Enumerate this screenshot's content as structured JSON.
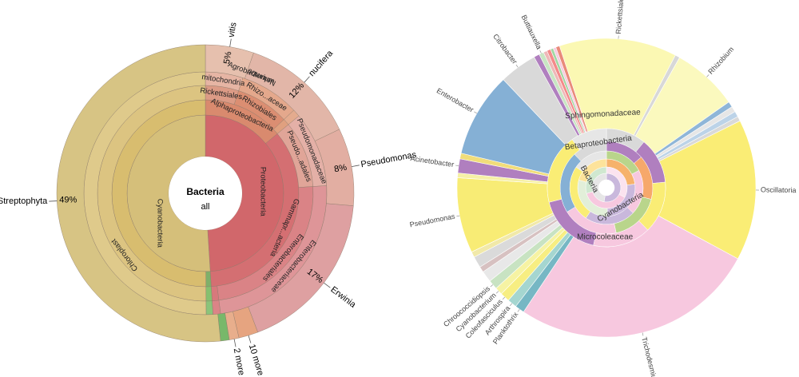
{
  "chart_data": [
    {
      "type": "sunburst",
      "center": {
        "title": "Bacteria",
        "subtitle": "all"
      },
      "rings": [
        [
          {
            "label": "Proteobacteria",
            "value": 49,
            "color": "#d1676b"
          },
          {
            "label": "Cyanobacteria",
            "value": 51,
            "color": "#d5bf7a"
          }
        ],
        [
          {
            "label": "Alphaproteobacteria",
            "value": 14,
            "color": "#d98a6e"
          },
          {
            "label": "Gammapr...acteria",
            "value": 35,
            "color": "#d46f72"
          },
          {
            "label": "",
            "value": 0.9,
            "color": "#7fb06a"
          },
          {
            "label": "Cyanobacteria",
            "value": 50.1,
            "color": "#d8bd6f"
          }
        ],
        [
          {
            "label": "Rickettsiales",
            "value": 5,
            "color": "#dc9b86"
          },
          {
            "label": "Rhizobiales",
            "value": 8,
            "color": "#db8e72"
          },
          {
            "label": "",
            "value": 1,
            "color": "#e0a07f"
          },
          {
            "label": "Pseudo...adales",
            "value": 10,
            "color": "#e0a598"
          },
          {
            "label": "Enterobacteriales",
            "value": 24,
            "color": "#da8386"
          },
          {
            "label": "",
            "value": 1,
            "color": "#d8797c"
          },
          {
            "label": "",
            "value": 0.9,
            "color": "#86c06f"
          },
          {
            "label": "Chloroplast",
            "value": 50.1,
            "color": "#dcc481"
          }
        ],
        [
          {
            "label": "mitochondria",
            "value": 5,
            "color": "#e6b5a4"
          },
          {
            "label": "Rhizo...aceae",
            "value": 8,
            "color": "#e4a88c"
          },
          {
            "label": "",
            "value": 1,
            "color": "#e4ab8e"
          },
          {
            "label": "Pseudomonadaceae",
            "value": 10,
            "color": "#e4b0a7"
          },
          {
            "label": "Enterobacteriaceae",
            "value": 24,
            "color": "#de9598"
          },
          {
            "label": "",
            "value": 1,
            "color": "#db8487"
          },
          {
            "label": "",
            "value": 0.9,
            "color": "#8bc47a"
          },
          {
            "label": "",
            "value": 50.1,
            "color": "#dfca8b"
          }
        ],
        [
          {
            "label": "vitis",
            "value": 5,
            "color": "#e6c0ae"
          },
          {
            "label": "nucifera",
            "value": 12,
            "color": "#e2b6a8"
          },
          {
            "label": "Pseudomonas",
            "value": 8,
            "color": "#e2aea2"
          },
          {
            "label": "Erwinia",
            "value": 17,
            "color": "#dea0a1"
          },
          {
            "label": "10 more",
            "value": 2,
            "color": "#e6a480"
          },
          {
            "label": "2 more",
            "value": 1,
            "color": "#e8ae8c"
          },
          {
            "label": "",
            "value": 0.9,
            "color": "#78b86a"
          },
          {
            "label": "Streptophyta",
            "value": 49,
            "color": "#d7c484"
          }
        ]
      ],
      "inner_labels": [
        "Nelumbo",
        "Agrobacterium"
      ],
      "percent_labels": [
        {
          "label": "49%",
          "for": "Streptophyta"
        },
        {
          "label": "5%",
          "for": "vitis"
        },
        {
          "label": "12%",
          "for": "nucifera"
        },
        {
          "label": "8%",
          "for": "Pseudomonas"
        },
        {
          "label": "17%",
          "for": "Erwinia"
        }
      ],
      "outer_labels": [
        "Streptophyta",
        "vitis",
        "nucifera",
        "Pseudomonas",
        "Erwinia",
        "10 more",
        "2 more"
      ]
    },
    {
      "type": "sunburst",
      "center": {
        "title": "",
        "subtitle": ""
      },
      "outer_ring": [
        {
          "label": "Rickettsiales",
          "value": 12.5,
          "color": "#fbf8b3"
        },
        {
          "label": "",
          "value": 0.5,
          "color": "#d8d8d8"
        },
        {
          "label": "Rhizobium",
          "value": 7,
          "color": "#fbf9be"
        },
        {
          "label": "",
          "value": 0.6,
          "color": "#8fb6d8"
        },
        {
          "label": "",
          "value": 0.6,
          "color": "#e6e6e6"
        },
        {
          "label": "",
          "value": 0.6,
          "color": "#bcd3e8"
        },
        {
          "label": "",
          "value": 0.5,
          "color": "#d9d9d9"
        },
        {
          "label": "Oscillatoria",
          "value": 15,
          "color": "#faed75"
        },
        {
          "label": "Trichodesmium",
          "value": 26,
          "color": "#f7c8df"
        },
        {
          "label": "Planktothrix",
          "value": 1,
          "color": "#76b7c4"
        },
        {
          "label": "Arthrospira",
          "value": 1,
          "color": "#a5d6d0"
        },
        {
          "label": "Coleofasciculus",
          "value": 1,
          "color": "#f7ee82"
        },
        {
          "label": "Cyanobacterium",
          "value": 0.8,
          "color": "#f6f3a3"
        },
        {
          "label": "Chroococcidiopsis",
          "value": 1,
          "color": "#c8e3c2"
        },
        {
          "label": "",
          "value": 1.2,
          "color": "#e8e8e8"
        },
        {
          "label": "",
          "value": 0.6,
          "color": "#d7c1c1"
        },
        {
          "label": "",
          "value": 1.2,
          "color": "#dadada"
        },
        {
          "label": "",
          "value": 0.6,
          "color": "#f1e9a9"
        },
        {
          "label": "Pseudomonas",
          "value": 8,
          "color": "#f8ec75"
        },
        {
          "label": "",
          "value": 0.5,
          "color": "#f6f0a6"
        },
        {
          "label": "Acinetobacter",
          "value": 1.5,
          "color": "#b07fbf"
        },
        {
          "label": "",
          "value": 0.6,
          "color": "#f1dd7a"
        },
        {
          "label": "Enterobacter",
          "value": 9,
          "color": "#85b0d5"
        },
        {
          "label": "Citrobacter",
          "value": 4,
          "color": "#d9d9d9"
        },
        {
          "label": "",
          "value": 0.6,
          "color": "#b07fbf"
        },
        {
          "label": "Buttiauxella",
          "value": 0.5,
          "color": "#c8e6c3"
        },
        {
          "label": "",
          "value": 0.4,
          "color": "#eeb9b9"
        },
        {
          "label": "",
          "value": 0.4,
          "color": "#f48a8a"
        },
        {
          "label": "",
          "value": 0.3,
          "color": "#a1d7a2"
        },
        {
          "label": "",
          "value": 0.3,
          "color": "#f7cbe0"
        },
        {
          "label": "",
          "value": 0.4,
          "color": "#e98a7a"
        }
      ],
      "mid_labels": [
        "Sphingomonadaceae",
        "Betaproteobacteria",
        "Bacteria",
        "Cyanobacteria",
        "Microcoleaceae"
      ]
    }
  ]
}
